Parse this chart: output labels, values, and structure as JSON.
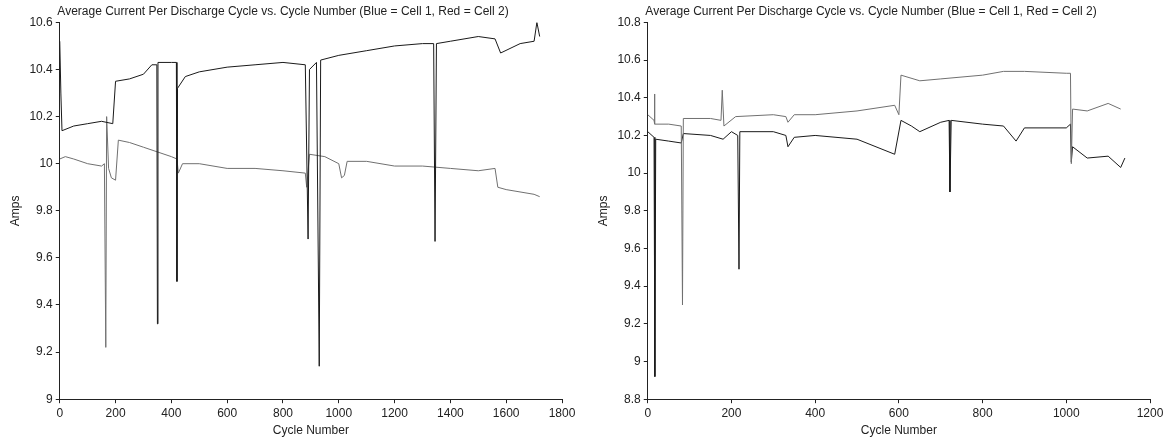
{
  "chart_data": [
    {
      "type": "line",
      "title": "Average Current Per Discharge Cycle vs. Cycle Number (Blue = Cell 1, Red = Cell 2)",
      "xlabel": "Cycle Number",
      "ylabel": "Amps",
      "xlim": [
        0,
        1800
      ],
      "ylim": [
        9,
        10.6
      ],
      "xticks": [
        0,
        200,
        400,
        600,
        800,
        1000,
        1200,
        1400,
        1600,
        1800
      ],
      "yticks": [
        9,
        9.2,
        9.4,
        9.6,
        9.8,
        10,
        10.2,
        10.4,
        10.6
      ],
      "series": [
        {
          "color": "#1a1a1a",
          "x": [
            0,
            4,
            8,
            50,
            100,
            150,
            190,
            200,
            250,
            300,
            330,
            348,
            350,
            352,
            400,
            418,
            420,
            422,
            450,
            500,
            600,
            700,
            800,
            880,
            890,
            895,
            920,
            930,
            935,
            1000,
            1100,
            1200,
            1300,
            1340,
            1345,
            1350,
            1400,
            1500,
            1560,
            1580,
            1650,
            1700,
            1710,
            1720
          ],
          "values": [
            10.52,
            10.3,
            10.14,
            10.16,
            10.17,
            10.18,
            10.17,
            10.35,
            10.36,
            10.38,
            10.42,
            10.42,
            9.32,
            10.43,
            10.43,
            10.43,
            9.5,
            10.32,
            10.37,
            10.39,
            10.41,
            10.42,
            10.43,
            10.42,
            9.68,
            10.4,
            10.43,
            9.14,
            10.44,
            10.46,
            10.48,
            10.5,
            10.51,
            10.51,
            9.67,
            10.51,
            10.52,
            10.54,
            10.53,
            10.47,
            10.51,
            10.52,
            10.6,
            10.54
          ]
        },
        {
          "color": "#707070",
          "x": [
            0,
            20,
            50,
            100,
            150,
            160,
            165,
            168,
            175,
            185,
            200,
            210,
            250,
            300,
            350,
            400,
            420,
            425,
            440,
            500,
            600,
            700,
            800,
            880,
            885,
            895,
            950,
            1000,
            1010,
            1020,
            1030,
            1100,
            1200,
            1300,
            1400,
            1500,
            1560,
            1570,
            1600,
            1700,
            1720
          ],
          "values": [
            10.02,
            10.03,
            10.02,
            10,
            9.99,
            10,
            9.22,
            10.2,
            9.98,
            9.94,
            9.93,
            10.1,
            10.09,
            10.07,
            10.05,
            10.03,
            10.02,
            9.96,
            10,
            10,
            9.98,
            9.98,
            9.97,
            9.96,
            9.9,
            10.04,
            10.03,
            10,
            9.94,
            9.95,
            10.01,
            10.01,
            9.99,
            9.99,
            9.98,
            9.97,
            9.98,
            9.9,
            9.89,
            9.87,
            9.86
          ]
        }
      ]
    },
    {
      "type": "line",
      "title": "Average Current Per Discharge Cycle vs. Cycle Number (Blue = Cell 1, Red = Cell 2)",
      "xlabel": "Cycle Number",
      "ylabel": "Amps",
      "xlim": [
        0,
        1200
      ],
      "ylim": [
        8.8,
        10.8
      ],
      "xticks": [
        0,
        200,
        400,
        600,
        800,
        1000,
        1200
      ],
      "yticks": [
        8.8,
        9,
        9.2,
        9.4,
        9.6,
        9.8,
        10,
        10.2,
        10.4,
        10.6,
        10.8
      ],
      "series": [
        {
          "color": "#707070",
          "x": [
            0,
            15,
            16,
            17,
            50,
            80,
            83,
            85,
            150,
            175,
            178,
            182,
            210,
            300,
            330,
            335,
            350,
            400,
            500,
            590,
            600,
            605,
            650,
            700,
            800,
            850,
            900,
            1000,
            1010,
            1012,
            1015,
            1050,
            1100,
            1130
          ],
          "values": [
            10.31,
            10.28,
            10.42,
            10.26,
            10.26,
            10.25,
            9.3,
            10.29,
            10.29,
            10.28,
            10.44,
            10.25,
            10.3,
            10.31,
            10.3,
            10.27,
            10.31,
            10.31,
            10.33,
            10.36,
            10.31,
            10.52,
            10.49,
            10.5,
            10.52,
            10.54,
            10.54,
            10.53,
            10.53,
            10.05,
            10.34,
            10.33,
            10.37,
            10.34
          ]
        },
        {
          "color": "#1a1a1a",
          "x": [
            0,
            15,
            17,
            19,
            50,
            80,
            85,
            150,
            180,
            200,
            215,
            218,
            220,
            300,
            330,
            335,
            350,
            400,
            500,
            590,
            605,
            630,
            650,
            700,
            720,
            722,
            725,
            800,
            850,
            880,
            900,
            1000,
            1010,
            1012,
            1015,
            1050,
            1100,
            1130,
            1140
          ],
          "values": [
            10.22,
            10.19,
            8.92,
            10.18,
            10.17,
            10.16,
            10.21,
            10.2,
            10.18,
            10.22,
            10.2,
            9.49,
            10.22,
            10.22,
            10.2,
            10.14,
            10.19,
            10.2,
            10.18,
            10.1,
            10.28,
            10.25,
            10.22,
            10.27,
            10.28,
            9.9,
            10.28,
            10.26,
            10.25,
            10.17,
            10.24,
            10.24,
            10.26,
            10.06,
            10.14,
            10.08,
            10.09,
            10.03,
            10.08
          ]
        }
      ]
    }
  ]
}
